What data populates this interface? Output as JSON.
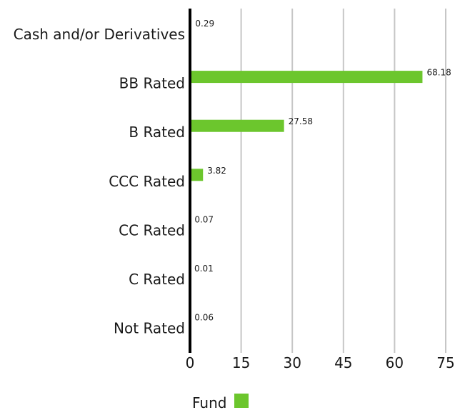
{
  "chart_data": {
    "type": "bar",
    "orientation": "horizontal",
    "categories": [
      "Cash and/or Derivatives",
      "BB Rated",
      "B Rated",
      "CCC Rated",
      "CC Rated",
      "C Rated",
      "Not Rated"
    ],
    "series": [
      {
        "name": "Fund",
        "values": [
          0.29,
          68.18,
          27.58,
          3.82,
          0.07,
          0.01,
          0.06
        ],
        "color": "#6cc62d"
      }
    ],
    "data_labels": [
      "0.29",
      "68.18",
      "27.58",
      "3.82",
      "0.07",
      "0.01",
      "0.06"
    ],
    "xlim": [
      0,
      75
    ],
    "xticks": [
      0,
      15,
      30,
      45,
      60,
      75
    ],
    "xtick_labels": [
      "0",
      "15",
      "30",
      "45",
      "60",
      "75"
    ],
    "grid": "vertical",
    "legend_position": "bottom",
    "title": "",
    "xlabel": "",
    "ylabel": ""
  }
}
